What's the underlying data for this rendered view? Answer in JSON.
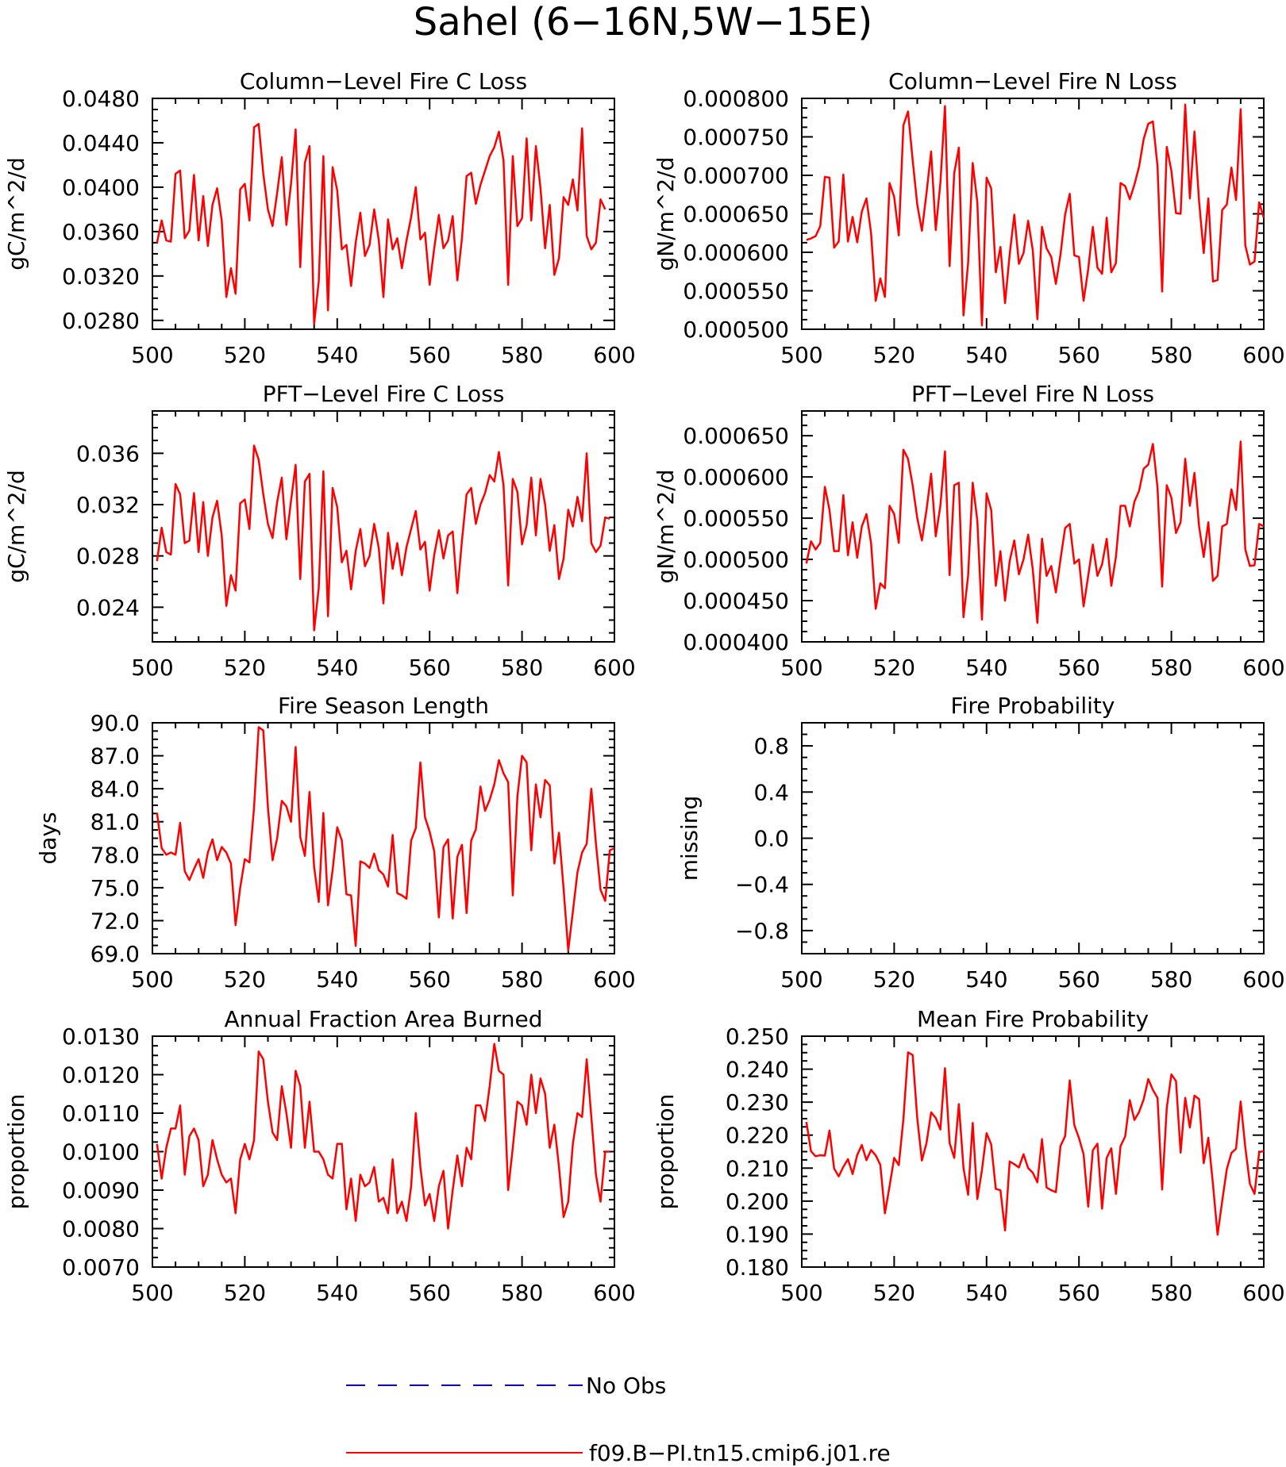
{
  "title": "Sahel (6−16N,5W−15E)",
  "colors": {
    "model": "#ff0000",
    "obs": "#0000ff",
    "axis": "#000000"
  },
  "legend": {
    "obs_label": "No Obs",
    "model_label": "f09.B−PI.tn15.cmip6.j01.re"
  },
  "chart_data": [
    {
      "type": "line",
      "title": "Column−Level Fire C Loss",
      "ylabel": "gC/m^2/d",
      "xlabel": "",
      "xlim": [
        500,
        600
      ],
      "ylim": [
        0.0272,
        0.048
      ],
      "xticks": [
        "500",
        "520",
        "540",
        "560",
        "580",
        "600"
      ],
      "yticks": [
        "0.0280",
        "0.0320",
        "0.0360",
        "0.0400",
        "0.0440",
        "0.0480"
      ],
      "grid": false,
      "series": [
        {
          "name": "f09.B−PI.tn15.cmip6.j01.re",
          "x_start": 501,
          "values": [
            0.035,
            0.037,
            0.0352,
            0.0351,
            0.0412,
            0.0415,
            0.0354,
            0.0361,
            0.0411,
            0.0352,
            0.0392,
            0.0347,
            0.0384,
            0.0399,
            0.037,
            0.0301,
            0.0327,
            0.0304,
            0.0398,
            0.0403,
            0.037,
            0.0454,
            0.0457,
            0.0412,
            0.038,
            0.0365,
            0.0395,
            0.0427,
            0.0366,
            0.0403,
            0.0452,
            0.0328,
            0.0422,
            0.0437,
            0.0277,
            0.0315,
            0.0428,
            0.0289,
            0.0418,
            0.0397,
            0.0344,
            0.0348,
            0.0311,
            0.035,
            0.0377,
            0.0338,
            0.0348,
            0.038,
            0.0352,
            0.0301,
            0.0371,
            0.0344,
            0.0354,
            0.0327,
            0.0352,
            0.0373,
            0.04,
            0.0353,
            0.0359,
            0.0312,
            0.0345,
            0.0375,
            0.0345,
            0.0352,
            0.0374,
            0.0316,
            0.0354,
            0.041,
            0.0413,
            0.0385,
            0.0402,
            0.0415,
            0.0428,
            0.0436,
            0.045,
            0.0424,
            0.0312,
            0.0428,
            0.0365,
            0.0372,
            0.0444,
            0.037,
            0.0437,
            0.0399,
            0.0345,
            0.0384,
            0.0321,
            0.0336,
            0.0391,
            0.0384,
            0.0407,
            0.0379,
            0.0453,
            0.0356,
            0.0344,
            0.035,
            0.0389,
            0.038
          ]
        }
      ]
    },
    {
      "type": "line",
      "title": "Column−Level Fire N Loss",
      "ylabel": "gN/m^2/d",
      "xlabel": "",
      "xlim": [
        500,
        600
      ],
      "ylim": [
        0.0005,
        0.0008
      ],
      "xticks": [
        "500",
        "520",
        "540",
        "560",
        "580",
        "600"
      ],
      "yticks": [
        "0.000500",
        "0.000550",
        "0.000600",
        "0.000650",
        "0.000700",
        "0.000750",
        "0.000800"
      ],
      "grid": false,
      "series": [
        {
          "name": "f09.B−PI.tn15.cmip6.j01.re",
          "x_start": 501,
          "values": [
            0.000616,
            0.000618,
            0.000621,
            0.000634,
            0.000698,
            0.000697,
            0.000606,
            0.000614,
            0.000701,
            0.000614,
            0.000646,
            0.000613,
            0.000653,
            0.00067,
            0.000625,
            0.000537,
            0.000566,
            0.000542,
            0.00069,
            0.000672,
            0.000622,
            0.000765,
            0.000783,
            0.00072,
            0.000662,
            0.000628,
            0.000677,
            0.000731,
            0.000629,
            0.00069,
            0.00079,
            0.000582,
            0.000703,
            0.000736,
            0.000518,
            0.000586,
            0.000716,
            0.000665,
            0.000505,
            0.000697,
            0.000683,
            0.000574,
            0.000607,
            0.000534,
            0.000597,
            0.000649,
            0.000585,
            0.000599,
            0.000641,
            0.000603,
            0.000513,
            0.000633,
            0.000605,
            0.000594,
            0.000559,
            0.000597,
            0.000649,
            0.000676,
            0.000596,
            0.000594,
            0.000537,
            0.000578,
            0.000633,
            0.00058,
            0.000572,
            0.000645,
            0.000574,
            0.000586,
            0.00069,
            0.000686,
            0.000669,
            0.000688,
            0.000711,
            0.000747,
            0.000767,
            0.00077,
            0.000712,
            0.000549,
            0.000737,
            0.000706,
            0.000651,
            0.00065,
            0.000792,
            0.00067,
            0.000757,
            0.000666,
            0.000599,
            0.00067,
            0.000562,
            0.000564,
            0.000655,
            0.000662,
            0.00071,
            0.000668,
            0.000786,
            0.000609,
            0.000584,
            0.000588,
            0.000665,
            0.000645
          ]
        }
      ]
    },
    {
      "type": "line",
      "title": "PFT−Level Fire C Loss",
      "ylabel": "gC/m^2/d",
      "xlabel": "",
      "xlim": [
        500,
        600
      ],
      "ylim": [
        0.0213,
        0.0393
      ],
      "xticks": [
        "500",
        "520",
        "540",
        "560",
        "580",
        "600"
      ],
      "yticks": [
        "0.024",
        "0.028",
        "0.032",
        "0.036"
      ],
      "grid": false,
      "series": [
        {
          "name": "f09.B−PI.tn15.cmip6.j01.re",
          "x_start": 501,
          "values": [
            0.0276,
            0.0302,
            0.0283,
            0.0281,
            0.0336,
            0.0328,
            0.029,
            0.0292,
            0.0329,
            0.0283,
            0.0322,
            0.028,
            0.031,
            0.0323,
            0.0296,
            0.0241,
            0.0265,
            0.0253,
            0.0321,
            0.0324,
            0.0301,
            0.0366,
            0.0355,
            0.0328,
            0.0305,
            0.0294,
            0.0322,
            0.0341,
            0.0293,
            0.0323,
            0.0351,
            0.0262,
            0.0338,
            0.0344,
            0.0222,
            0.0255,
            0.0346,
            0.0233,
            0.0333,
            0.0318,
            0.0275,
            0.0284,
            0.0254,
            0.0284,
            0.0301,
            0.0272,
            0.028,
            0.0305,
            0.0286,
            0.0243,
            0.0298,
            0.027,
            0.029,
            0.0265,
            0.0287,
            0.0301,
            0.0315,
            0.0285,
            0.0291,
            0.0253,
            0.0281,
            0.03,
            0.0278,
            0.0296,
            0.0299,
            0.0251,
            0.0292,
            0.0328,
            0.0333,
            0.0305,
            0.032,
            0.0329,
            0.0343,
            0.0338,
            0.0361,
            0.0335,
            0.0257,
            0.034,
            0.033,
            0.0289,
            0.0304,
            0.0341,
            0.0296,
            0.034,
            0.032,
            0.0284,
            0.0304,
            0.0262,
            0.0278,
            0.0316,
            0.0303,
            0.0326,
            0.0307,
            0.036,
            0.029,
            0.0283,
            0.0288,
            0.031,
            0.0309
          ]
        }
      ]
    },
    {
      "type": "line",
      "title": "PFT−Level Fire N Loss",
      "ylabel": "gN/m^2/d",
      "xlabel": "",
      "xlim": [
        500,
        600
      ],
      "ylim": [
        0.0004,
        0.00068
      ],
      "xticks": [
        "500",
        "520",
        "540",
        "560",
        "580",
        "600"
      ],
      "yticks": [
        "0.000400",
        "0.000450",
        "0.000500",
        "0.000550",
        "0.000600",
        "0.000650"
      ],
      "grid": false,
      "series": [
        {
          "name": "f09.B−PI.tn15.cmip6.j01.re",
          "x_start": 501,
          "values": [
            0.000495,
            0.000522,
            0.000512,
            0.00052,
            0.000588,
            0.00056,
            0.00051,
            0.00051,
            0.000578,
            0.000505,
            0.000545,
            0.000502,
            0.00054,
            0.000555,
            0.00052,
            0.00044,
            0.000471,
            0.000465,
            0.000565,
            0.000555,
            0.00052,
            0.000633,
            0.000622,
            0.00059,
            0.00055,
            0.000523,
            0.00056,
            0.000604,
            0.000528,
            0.000565,
            0.000631,
            0.000481,
            0.00059,
            0.000593,
            0.00043,
            0.00048,
            0.000593,
            0.000547,
            0.000427,
            0.00058,
            0.00056,
            0.000468,
            0.00051,
            0.00045,
            0.000498,
            0.000523,
            0.000482,
            0.0005,
            0.00053,
            0.000488,
            0.000423,
            0.000525,
            0.00048,
            0.000492,
            0.00046,
            0.0005,
            0.000538,
            0.000543,
            0.000495,
            0.0005,
            0.000443,
            0.00048,
            0.000518,
            0.00048,
            0.000494,
            0.000525,
            0.000468,
            0.000503,
            0.000565,
            0.000565,
            0.00054,
            0.00057,
            0.000583,
            0.00061,
            0.000615,
            0.00064,
            0.000587,
            0.000467,
            0.00059,
            0.000575,
            0.000532,
            0.000545,
            0.000622,
            0.000565,
            0.000605,
            0.00054,
            0.000503,
            0.000545,
            0.000474,
            0.00048,
            0.00054,
            0.000543,
            0.000585,
            0.00056,
            0.000643,
            0.000512,
            0.000492,
            0.000493,
            0.000543,
            0.00054
          ]
        }
      ]
    },
    {
      "type": "line",
      "title": "Fire Season Length",
      "ylabel": "days",
      "xlabel": "",
      "xlim": [
        500,
        600
      ],
      "ylim": [
        69.0,
        90.0
      ],
      "xticks": [
        "500",
        "520",
        "540",
        "560",
        "580",
        "600"
      ],
      "yticks": [
        "69.0",
        "72.0",
        "75.0",
        "78.0",
        "81.0",
        "84.0",
        "87.0",
        "90.0"
      ],
      "grid": false,
      "series": [
        {
          "name": "f09.B−PI.tn15.cmip6.j01.re",
          "x_start": 501,
          "values": [
            81.8,
            78.6,
            78.0,
            78.2,
            78.0,
            80.9,
            76.5,
            75.7,
            76.7,
            77.6,
            75.9,
            78.2,
            79.4,
            77.5,
            78.7,
            78.2,
            77.2,
            71.6,
            75.0,
            77.6,
            77.3,
            82.3,
            89.6,
            89.3,
            82.3,
            77.5,
            79.5,
            82.9,
            82.4,
            81.0,
            87.8,
            79.6,
            77.9,
            83.7,
            76.9,
            73.7,
            81.8,
            73.4,
            76.6,
            80.5,
            79.3,
            74.4,
            74.3,
            69.7,
            77.4,
            77.2,
            76.8,
            78.1,
            76.6,
            76.2,
            75.1,
            79.8,
            74.5,
            74.3,
            74.0,
            79.3,
            80.4,
            86.4,
            81.4,
            80.1,
            78.3,
            72.3,
            78.7,
            79.4,
            72.2,
            77.8,
            78.9,
            72.7,
            79.3,
            80.3,
            84.2,
            82.0,
            83.0,
            84.4,
            86.6,
            85.4,
            84.6,
            74.3,
            83.3,
            87.0,
            86.4,
            78.4,
            84.4,
            81.4,
            84.8,
            84.3,
            77.2,
            80.0,
            74.9,
            69.3,
            72.8,
            76.4,
            78.2,
            79.0,
            84.0,
            79.0,
            74.8,
            73.8,
            78.4,
            78.6
          ]
        }
      ]
    },
    {
      "type": "line",
      "title": "Fire Probability",
      "ylabel": "missing",
      "xlabel": "",
      "xlim": [
        500,
        600
      ],
      "ylim": [
        -1.0,
        1.0
      ],
      "xticks": [
        "500",
        "520",
        "540",
        "560",
        "580",
        "600"
      ],
      "yticks": [
        "−0.8",
        "−0.4",
        "0.0",
        "0.4",
        "0.8"
      ],
      "grid": false,
      "series": []
    },
    {
      "type": "line",
      "title": "Annual Fraction Area Burned",
      "ylabel": "proportion",
      "xlabel": "",
      "xlim": [
        500,
        600
      ],
      "ylim": [
        0.007,
        0.013
      ],
      "xticks": [
        "500",
        "520",
        "540",
        "560",
        "580",
        "600"
      ],
      "yticks": [
        "0.0070",
        "0.0080",
        "0.0090",
        "0.0100",
        "0.0110",
        "0.0120",
        "0.0130"
      ],
      "grid": false,
      "series": [
        {
          "name": "f09.B−PI.tn15.cmip6.j01.re",
          "x_start": 501,
          "values": [
            0.0102,
            0.0093,
            0.0101,
            0.0106,
            0.0106,
            0.0112,
            0.0094,
            0.0104,
            0.0106,
            0.0103,
            0.0091,
            0.0094,
            0.0103,
            0.0098,
            0.0094,
            0.0092,
            0.0093,
            0.0084,
            0.0098,
            0.0102,
            0.0098,
            0.0103,
            0.0126,
            0.0124,
            0.0113,
            0.0105,
            0.0103,
            0.0117,
            0.011,
            0.0101,
            0.0121,
            0.0117,
            0.0101,
            0.0113,
            0.01,
            0.01,
            0.0098,
            0.0094,
            0.0093,
            0.0102,
            0.0102,
            0.0085,
            0.0093,
            0.0082,
            0.0094,
            0.0091,
            0.0092,
            0.0096,
            0.0087,
            0.0088,
            0.0084,
            0.0098,
            0.0084,
            0.0087,
            0.0082,
            0.0091,
            0.011,
            0.0096,
            0.0086,
            0.0089,
            0.0082,
            0.0091,
            0.0095,
            0.008,
            0.009,
            0.0099,
            0.0091,
            0.0101,
            0.0098,
            0.0112,
            0.0112,
            0.0108,
            0.0117,
            0.0128,
            0.0121,
            0.012,
            0.009,
            0.0101,
            0.0113,
            0.0112,
            0.0107,
            0.012,
            0.011,
            0.0119,
            0.0115,
            0.0101,
            0.0107,
            0.0096,
            0.0083,
            0.0087,
            0.0102,
            0.011,
            0.0109,
            0.0124,
            0.0109,
            0.0094,
            0.0087,
            0.01,
            0.01
          ]
        }
      ]
    },
    {
      "type": "line",
      "title": "Mean Fire Probability",
      "ylabel": "proportion",
      "xlabel": "",
      "xlim": [
        500,
        600
      ],
      "ylim": [
        0.18,
        0.25
      ],
      "xticks": [
        "500",
        "520",
        "540",
        "560",
        "580",
        "600"
      ],
      "yticks": [
        "0.180",
        "0.190",
        "0.200",
        "0.210",
        "0.220",
        "0.230",
        "0.240",
        "0.250"
      ],
      "grid": false,
      "series": [
        {
          "name": "f09.B−PI.tn15.cmip6.j01.re",
          "x_start": 501,
          "values": [
            0.224,
            0.2151,
            0.2136,
            0.2139,
            0.2138,
            0.2214,
            0.2099,
            0.2075,
            0.2104,
            0.2127,
            0.2082,
            0.214,
            0.217,
            0.2124,
            0.2155,
            0.2139,
            0.211,
            0.1963,
            0.2045,
            0.2131,
            0.2109,
            0.2249,
            0.2451,
            0.2443,
            0.2251,
            0.2123,
            0.2176,
            0.2269,
            0.2252,
            0.2217,
            0.2403,
            0.2176,
            0.2131,
            0.2294,
            0.2101,
            0.2019,
            0.2237,
            0.2006,
            0.2094,
            0.2206,
            0.2172,
            0.2037,
            0.2033,
            0.1911,
            0.212,
            0.2112,
            0.2102,
            0.2142,
            0.21,
            0.2086,
            0.2057,
            0.2188,
            0.2041,
            0.2033,
            0.2027,
            0.2167,
            0.2197,
            0.2366,
            0.223,
            0.2191,
            0.2142,
            0.1983,
            0.2154,
            0.2174,
            0.1977,
            0.2131,
            0.216,
            0.2022,
            0.2167,
            0.2196,
            0.2306,
            0.2246,
            0.227,
            0.2308,
            0.237,
            0.2337,
            0.2313,
            0.2035,
            0.2282,
            0.2384,
            0.2364,
            0.2147,
            0.2313,
            0.2223,
            0.232,
            0.2309,
            0.2115,
            0.2192,
            0.2051,
            0.1898,
            0.2,
            0.2097,
            0.2146,
            0.2159,
            0.2302,
            0.2163,
            0.2052,
            0.2022,
            0.2148,
            0.2152
          ]
        }
      ]
    }
  ]
}
